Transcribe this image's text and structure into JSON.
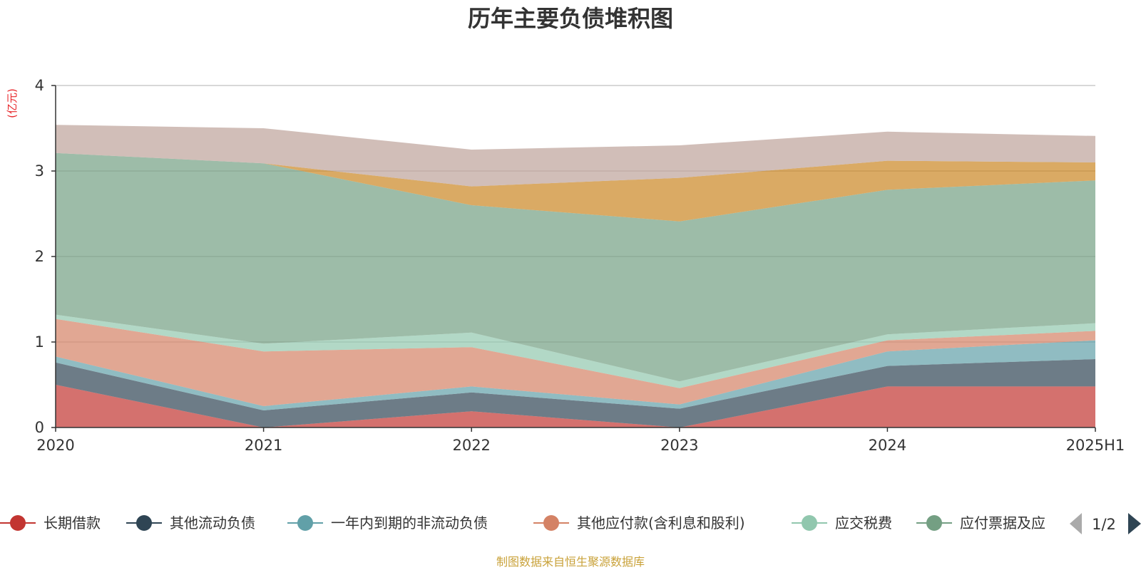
{
  "chart_data": {
    "type": "area",
    "title": "历年主要负债堆积图",
    "unit_label": "(亿元)",
    "x": [
      "2020",
      "2021",
      "2022",
      "2023",
      "2024",
      "2025H1"
    ],
    "ylim": [
      0,
      4
    ],
    "yticks": [
      "0",
      "1",
      "2",
      "3",
      "4"
    ],
    "grid": true,
    "stacked": true,
    "series": [
      {
        "name": "长期借款",
        "color": "#c23531",
        "values": [
          0.5,
          0.0,
          0.19,
          0.0,
          0.48,
          0.48
        ]
      },
      {
        "name": "其他流动负债",
        "color": "#2f4554",
        "values": [
          0.26,
          0.2,
          0.22,
          0.22,
          0.24,
          0.32
        ]
      },
      {
        "name": "一年内到期的非流动负债",
        "color": "#61a0a8",
        "values": [
          0.07,
          0.05,
          0.07,
          0.05,
          0.17,
          0.22
        ]
      },
      {
        "name": "其他应付款(含利息和股利)",
        "color": "#d48265",
        "values": [
          0.44,
          0.64,
          0.46,
          0.19,
          0.13,
          0.11
        ]
      },
      {
        "name": "应交税费",
        "color": "#91c7ae",
        "values": [
          0.05,
          0.09,
          0.17,
          0.08,
          0.07,
          0.09
        ]
      },
      {
        "name": "应付票据及应付账款",
        "color": "#749f83",
        "values": [
          1.89,
          2.11,
          1.49,
          1.87,
          1.69,
          1.67
        ]
      },
      {
        "name": "",
        "color": "#ca8622",
        "values": [
          0.0,
          0.0,
          0.22,
          0.51,
          0.34,
          0.21
        ]
      },
      {
        "name": "",
        "color": "#bda29a",
        "values": [
          0.33,
          0.41,
          0.43,
          0.38,
          0.34,
          0.31
        ]
      }
    ],
    "legend": {
      "placement": "bottom",
      "visible_items": [
        "长期借款",
        "其他流动负债",
        "一年内到期的非流动负债",
        "其他应付款(含利息和股利)",
        "应交税费",
        "应付票据及应"
      ],
      "page_indicator": "1/2"
    },
    "source_note": "制图数据来自恒生聚源数据库"
  }
}
